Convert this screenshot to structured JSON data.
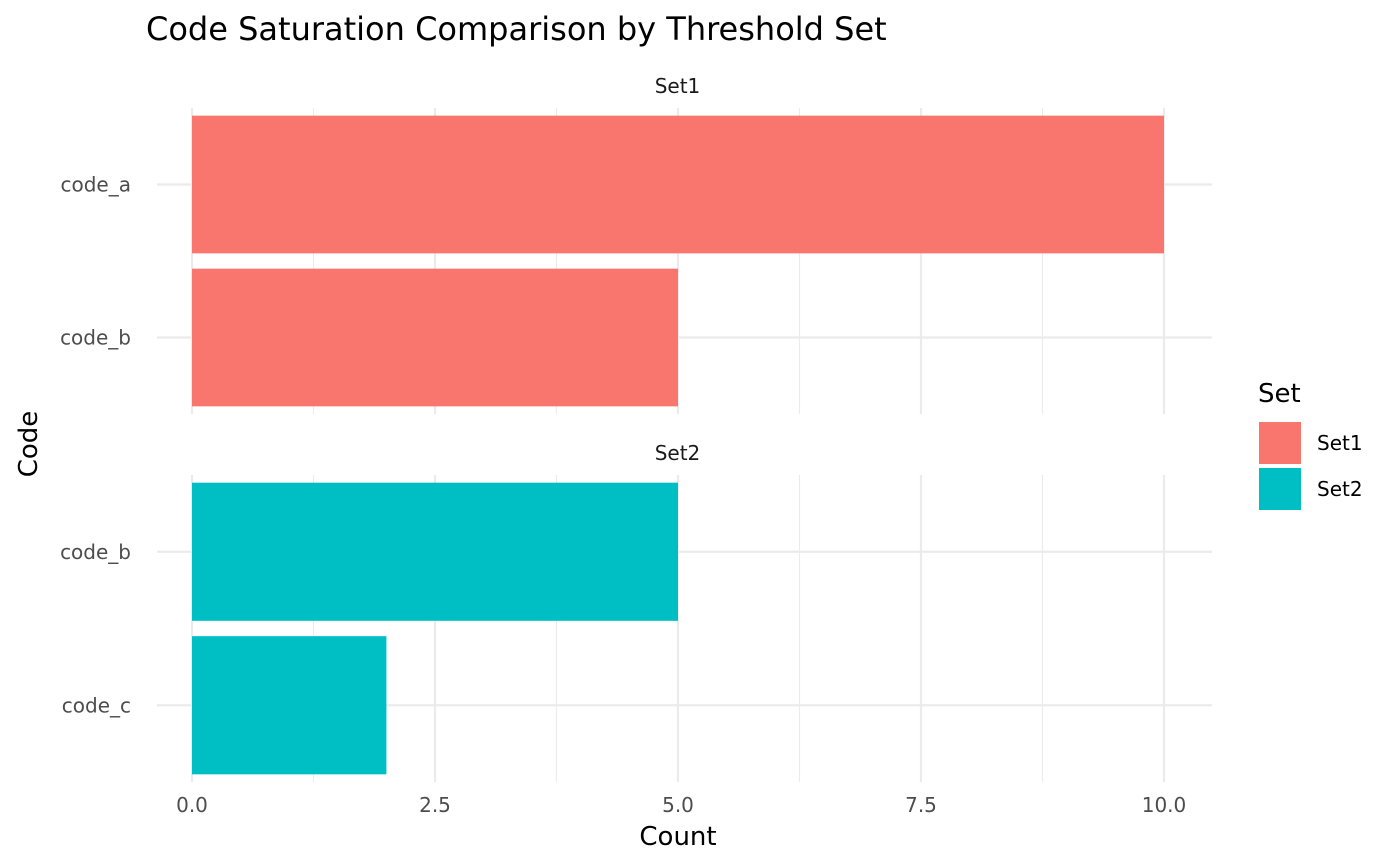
{
  "chart_data": {
    "type": "bar",
    "orientation": "horizontal",
    "title": "Code Saturation Comparison by Threshold Set",
    "xlabel": "Count",
    "ylabel": "Code",
    "xlim": [
      0,
      10.5
    ],
    "x_ticks": [
      "0.0",
      "2.5",
      "5.0",
      "7.5",
      "10.0"
    ],
    "x_tick_values": [
      0,
      2.5,
      5,
      7.5,
      10
    ],
    "grid": true,
    "legend": {
      "title": "Set",
      "placement": "right",
      "entries": [
        {
          "label": "Set1",
          "color": "#F8766D"
        },
        {
          "label": "Set2",
          "color": "#00BFC4"
        }
      ]
    },
    "facets": [
      {
        "label": "Set1",
        "color": "#F8766D",
        "categories": [
          "code_a",
          "code_b"
        ],
        "values": [
          10,
          5
        ]
      },
      {
        "label": "Set2",
        "color": "#00BFC4",
        "categories": [
          "code_b",
          "code_c"
        ],
        "values": [
          5,
          2
        ]
      }
    ]
  }
}
